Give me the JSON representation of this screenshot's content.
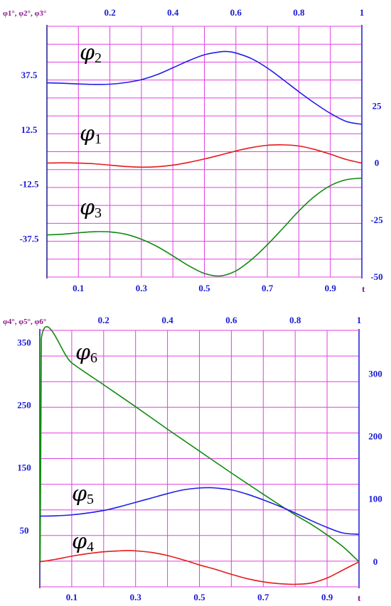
{
  "chart_data": [
    {
      "type": "line",
      "corner_label": "φ1°, φ2°, φ3°",
      "t_label": "t",
      "xlim": [
        0,
        1
      ],
      "top_ticks": [
        "0.2",
        "0.4",
        "0.6",
        "0.8",
        "1"
      ],
      "top_tick_values": [
        0.2,
        0.4,
        0.6,
        0.8,
        1.0
      ],
      "bottom_ticks": [
        "0.1",
        "0.3",
        "0.5",
        "0.7",
        "0.9"
      ],
      "bottom_tick_values": [
        0.1,
        0.3,
        0.5,
        0.7,
        0.9
      ],
      "left_ylim": [
        -55,
        60
      ],
      "left_ticks": [
        "37.5",
        "12.5",
        "-12.5",
        "-37.5"
      ],
      "left_tick_values": [
        37.5,
        12.5,
        -12.5,
        -37.5
      ],
      "right_ylim": [
        -50,
        60
      ],
      "right_ticks": [
        "25",
        "0",
        "-25",
        "-50"
      ],
      "right_tick_values": [
        25,
        0,
        -25,
        -50
      ],
      "grid": true,
      "series": [
        {
          "name": "φ2",
          "name_symbol": "φ",
          "name_sub": "2",
          "color": "#1f1fe6",
          "x": [
            0.0,
            0.05,
            0.1,
            0.15,
            0.2,
            0.25,
            0.3,
            0.35,
            0.4,
            0.45,
            0.5,
            0.55,
            0.575,
            0.6,
            0.65,
            0.7,
            0.75,
            0.8,
            0.85,
            0.9,
            0.95,
            1.0
          ],
          "values": [
            35.2,
            35.0,
            34.7,
            34.5,
            34.6,
            35.3,
            36.6,
            38.8,
            41.8,
            44.9,
            47.5,
            48.8,
            48.9,
            48.3,
            45.8,
            41.7,
            36.6,
            31.3,
            26.3,
            21.8,
            18.3,
            17.0
          ]
        },
        {
          "name": "φ1",
          "name_symbol": "φ",
          "name_sub": "1",
          "color": "#e61a1a",
          "x": [
            0.0,
            0.05,
            0.1,
            0.15,
            0.2,
            0.25,
            0.3,
            0.35,
            0.4,
            0.45,
            0.5,
            0.55,
            0.6,
            0.65,
            0.7,
            0.75,
            0.8,
            0.85,
            0.9,
            0.95,
            1.0
          ],
          "values": [
            0.0,
            0.1,
            0.0,
            -0.3,
            -0.9,
            -1.5,
            -1.8,
            -1.6,
            -0.9,
            0.3,
            1.8,
            3.5,
            5.3,
            6.8,
            7.8,
            8.0,
            7.5,
            6.0,
            3.9,
            1.6,
            0.0
          ]
        },
        {
          "name": "φ3",
          "name_symbol": "φ",
          "name_sub": "3",
          "color": "#108a10",
          "x": [
            0.0,
            0.05,
            0.1,
            0.15,
            0.2,
            0.25,
            0.3,
            0.35,
            0.4,
            0.45,
            0.5,
            0.55,
            0.6,
            0.65,
            0.7,
            0.75,
            0.8,
            0.85,
            0.9,
            0.95,
            1.0
          ],
          "values": [
            -31.5,
            -31.2,
            -30.6,
            -30.1,
            -30.2,
            -31.2,
            -33.4,
            -36.6,
            -40.7,
            -45.0,
            -48.4,
            -49.5,
            -47.3,
            -42.3,
            -35.8,
            -28.5,
            -21.0,
            -14.6,
            -9.9,
            -7.3,
            -6.6
          ]
        }
      ]
    },
    {
      "type": "line",
      "corner_label": "φ4°, φ5°, φ6°",
      "t_label": "t",
      "xlim": [
        0,
        1
      ],
      "top_ticks": [
        "0.2",
        "0.4",
        "0.6",
        "0.8",
        "1"
      ],
      "top_tick_values": [
        0.2,
        0.4,
        0.6,
        0.8,
        1.0
      ],
      "bottom_ticks": [
        "0.1",
        "0.3",
        "0.5",
        "0.7",
        "0.9"
      ],
      "bottom_tick_values": [
        0.1,
        0.3,
        0.5,
        0.7,
        0.9
      ],
      "left_ylim": [
        -40,
        370
      ],
      "left_ticks": [
        "350",
        "250",
        "150",
        "50"
      ],
      "left_tick_values": [
        350,
        250,
        150,
        50
      ],
      "right_ylim": [
        -40,
        370
      ],
      "right_ticks": [
        "300",
        "200",
        "100",
        "0"
      ],
      "right_tick_values": [
        300,
        200,
        100,
        0
      ],
      "grid": true,
      "series": [
        {
          "name": "φ6",
          "name_symbol": "φ",
          "name_sub": "6",
          "color": "#108a10",
          "x": [
            0.0,
            0.0001,
            0.001,
            0.005,
            0.1,
            0.2,
            0.3,
            0.4,
            0.5,
            0.6,
            0.7,
            0.8,
            0.85,
            0.9,
            0.95,
            1.0
          ],
          "values": [
            360,
            180,
            0,
            358,
            318,
            283,
            248,
            212,
            177,
            142,
            108,
            75,
            60,
            43,
            24,
            0
          ]
        },
        {
          "name": "φ5",
          "name_symbol": "φ",
          "name_sub": "5",
          "color": "#1f1fe6",
          "x": [
            0.0,
            0.05,
            0.1,
            0.15,
            0.2,
            0.25,
            0.3,
            0.35,
            0.4,
            0.45,
            0.5,
            0.53,
            0.55,
            0.6,
            0.65,
            0.7,
            0.75,
            0.8,
            0.85,
            0.9,
            0.95,
            1.0
          ],
          "values": [
            73,
            73.5,
            75,
            78,
            82,
            88,
            95,
            102,
            109,
            115,
            118,
            118.5,
            118,
            115,
            108,
            99,
            89,
            78,
            66,
            55,
            46,
            44
          ]
        },
        {
          "name": "φ4",
          "name_symbol": "φ",
          "name_sub": "4",
          "color": "#e61a1a",
          "x": [
            0.0,
            0.05,
            0.1,
            0.15,
            0.2,
            0.25,
            0.28,
            0.3,
            0.35,
            0.4,
            0.45,
            0.5,
            0.55,
            0.6,
            0.65,
            0.7,
            0.75,
            0.8,
            0.85,
            0.9,
            0.95,
            1.0
          ],
          "values": [
            0,
            4,
            9,
            13,
            16,
            17.5,
            18,
            17.5,
            15,
            10,
            3,
            -5,
            -12,
            -20,
            -27,
            -32,
            -35,
            -36,
            -34,
            -26,
            -13,
            0
          ]
        }
      ]
    }
  ]
}
